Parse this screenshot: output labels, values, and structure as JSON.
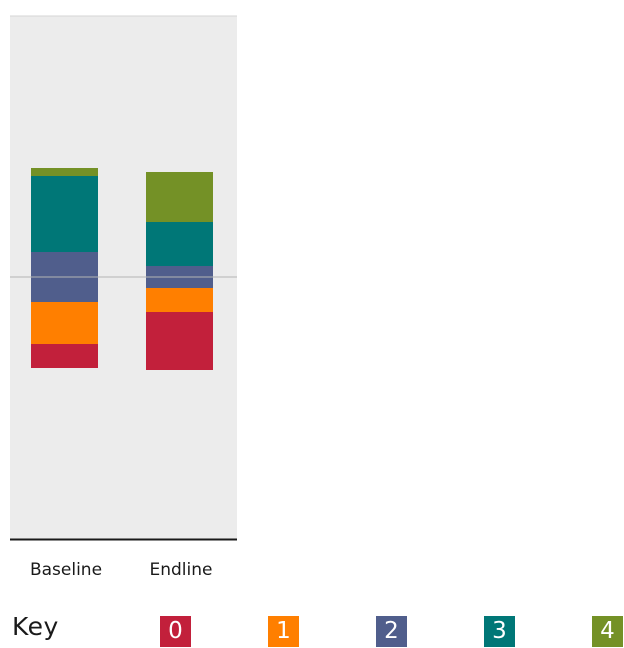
{
  "chart_data": {
    "type": "bar",
    "stacked": true,
    "diverging": true,
    "categories": [
      "Baseline",
      "Endline"
    ],
    "series": [
      {
        "name": "0",
        "color": "#c2203b",
        "values": [
          0.12,
          0.29
        ]
      },
      {
        "name": "1",
        "color": "#ff7f00",
        "values": [
          0.21,
          0.12
        ]
      },
      {
        "name": "2",
        "color": "#505e8c",
        "values": [
          0.25,
          0.11
        ]
      },
      {
        "name": "3",
        "color": "#007777",
        "values": [
          0.38,
          0.22
        ]
      },
      {
        "name": "4",
        "color": "#749126",
        "values": [
          0.04,
          0.25
        ]
      }
    ],
    "grid": false,
    "legend": "bottom",
    "title": "",
    "xlabel": "",
    "ylabel": ""
  },
  "key": {
    "title": "Key",
    "items": [
      {
        "label": "0",
        "color": "#c2203b"
      },
      {
        "label": "1",
        "color": "#ff7f00"
      },
      {
        "label": "2",
        "color": "#505e8c"
      },
      {
        "label": "3",
        "color": "#007777"
      },
      {
        "label": "4",
        "color": "#749126"
      }
    ]
  },
  "colors": {
    "panel": "#ececec",
    "zero_line": "#b5b5b5",
    "axis": "#1a1a1a"
  }
}
